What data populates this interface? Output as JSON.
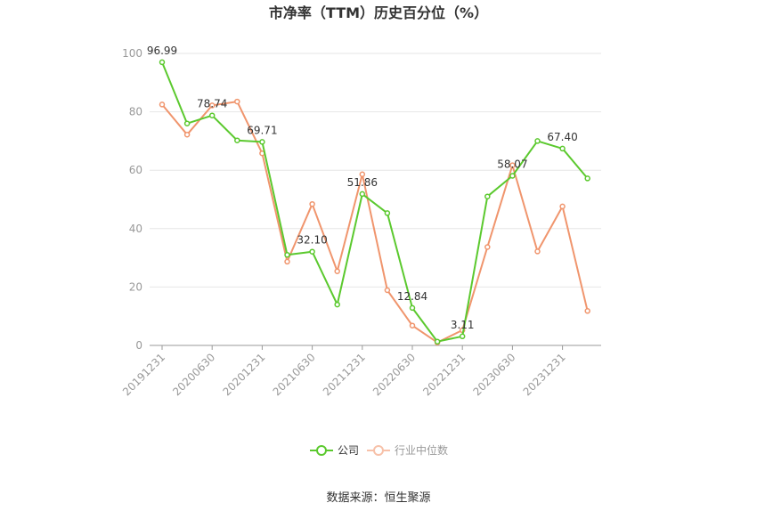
{
  "chart_data": {
    "type": "line",
    "title": "市净率（TTM）历史百分位（%）",
    "x": [
      "20191231",
      "20200331",
      "20200630",
      "20200930",
      "20201231",
      "20210331",
      "20210630",
      "20210930",
      "20211231",
      "20220331",
      "20220630",
      "20220930",
      "20221231",
      "20230331",
      "20230630",
      "20230930",
      "20231231",
      "20240331"
    ],
    "xtick_labels": [
      "20191231",
      "20200630",
      "20201231",
      "20210630",
      "20211231",
      "20220630",
      "20221231",
      "20230630",
      "20231231"
    ],
    "yticks": [
      0,
      20,
      40,
      60,
      80,
      100
    ],
    "ylim": [
      0,
      100
    ],
    "grid": true,
    "legend_position": "bottom",
    "series": [
      {
        "name": "公司",
        "color": "#5bc92e",
        "values": [
          96.99,
          76.0,
          78.74,
          70.2,
          69.71,
          31.0,
          32.1,
          14.0,
          51.86,
          45.3,
          12.84,
          1.3,
          3.11,
          51.0,
          58.07,
          70.0,
          67.4,
          57.2
        ],
        "data_labels": [
          {
            "index": 0,
            "text": "96.99"
          },
          {
            "index": 2,
            "text": "78.74"
          },
          {
            "index": 4,
            "text": "69.71"
          },
          {
            "index": 6,
            "text": "32.10"
          },
          {
            "index": 8,
            "text": "51.86"
          },
          {
            "index": 10,
            "text": "12.84"
          },
          {
            "index": 12,
            "text": "3.11"
          },
          {
            "index": 14,
            "text": "58.07"
          },
          {
            "index": 16,
            "text": "67.40"
          }
        ]
      },
      {
        "name": "行业中位数",
        "color": "#f0956d",
        "values": [
          82.5,
          72.2,
          82.2,
          83.5,
          65.8,
          28.7,
          48.4,
          25.4,
          58.6,
          18.9,
          6.8,
          1.0,
          5.2,
          33.7,
          61.7,
          32.2,
          47.6,
          11.8
        ]
      }
    ]
  },
  "source": "数据来源：恒生聚源"
}
